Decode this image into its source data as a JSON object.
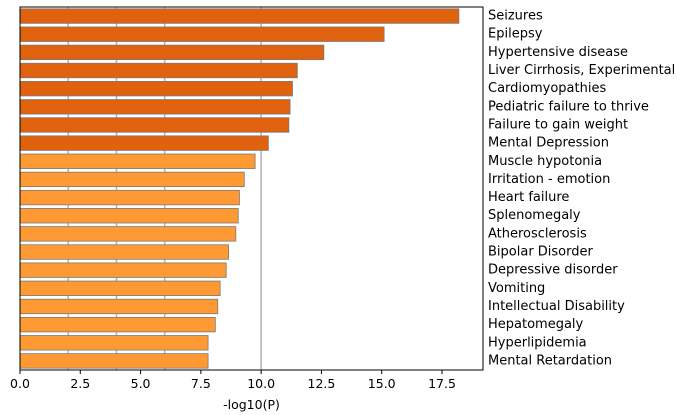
{
  "chart_data": {
    "type": "bar",
    "orientation": "horizontal",
    "xlabel": "-log10(P)",
    "xlim": [
      0,
      19.2
    ],
    "xticks": [
      "0.0",
      "2.5",
      "5.0",
      "7.5",
      "10.0",
      "12.5",
      "15.0",
      "17.5"
    ],
    "xtick_values": [
      0,
      2.5,
      5,
      7.5,
      10,
      12.5,
      15,
      17.5
    ],
    "reference_lines": [
      2,
      4,
      6,
      10
    ],
    "grid": false,
    "colors": {
      "dark": "#e0610e",
      "light": "#ff9933",
      "edge": "#7a7a7a",
      "refline": "#b3b3b3"
    },
    "categories": [
      "Seizures",
      "Epilepsy",
      "Hypertensive disease",
      "Liver Cirrhosis, Experimental",
      "Cardiomyopathies",
      "Pediatric failure to thrive",
      "Failure to gain weight",
      "Mental Depression",
      "Muscle hypotonia",
      "Irritation - emotion",
      "Heart failure",
      "Splenomegaly",
      "Atherosclerosis",
      "Bipolar Disorder",
      "Depressive disorder",
      "Vomiting",
      "Intellectual Disability",
      "Hepatomegaly",
      "Hyperlipidemia",
      "Mental Retardation"
    ],
    "values": [
      18.2,
      15.1,
      12.6,
      11.5,
      11.3,
      11.2,
      11.15,
      10.3,
      9.75,
      9.3,
      9.1,
      9.05,
      8.95,
      8.65,
      8.55,
      8.3,
      8.2,
      8.1,
      7.8,
      7.8
    ],
    "color_group": [
      "dark",
      "dark",
      "dark",
      "dark",
      "dark",
      "dark",
      "dark",
      "dark",
      "light",
      "light",
      "light",
      "light",
      "light",
      "light",
      "light",
      "light",
      "light",
      "light",
      "light",
      "light"
    ]
  }
}
